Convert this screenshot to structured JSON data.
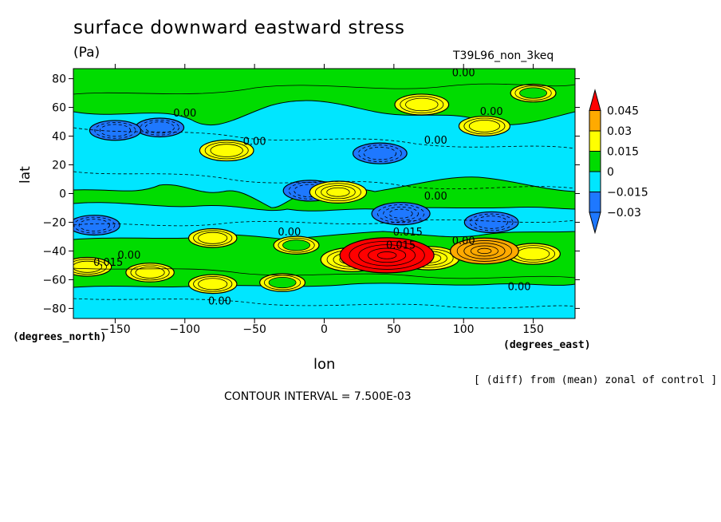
{
  "header": {
    "title": "surface downward eastward stress",
    "units": "(Pa)",
    "run_name": "T39L96_non_3keq"
  },
  "footer": {
    "contour_interval": "CONTOUR INTERVAL = 7.500E-03",
    "note": "[ (diff) from (mean) zonal of control ]"
  },
  "chart_data": {
    "type": "heatmap",
    "title": "surface downward eastward stress",
    "units": "(Pa)",
    "xlabel": "lon",
    "ylabel": "lat",
    "x_unit_label": "(degrees_east)",
    "y_unit_label": "(degrees_north)",
    "xlim": [
      -180,
      180
    ],
    "ylim": [
      -87,
      87
    ],
    "x_ticks": [
      -150,
      -100,
      -50,
      0,
      50,
      100,
      150
    ],
    "y_ticks": [
      80,
      60,
      40,
      20,
      0,
      -20,
      -40,
      -60,
      -80
    ],
    "grid": false,
    "contour_interval": 0.0075,
    "colorbar": {
      "position": "right",
      "levels": [
        -0.03,
        -0.015,
        0,
        0.015,
        0.03,
        0.045
      ],
      "level_labels": [
        "−0.03",
        "−0.015",
        "0",
        "0.015",
        "0.03",
        "0.045"
      ],
      "colors": [
        "#1e78ff",
        "#00e6ff",
        "#00dc00",
        "#ffff00",
        "#ffaa00",
        "#ff0000"
      ],
      "extend": "both"
    },
    "background_band": {
      "value": 0,
      "color": "#00dc00"
    },
    "anomalies": [
      {
        "lon": -70,
        "lat": 30,
        "value": 0.022
      },
      {
        "lon": 70,
        "lat": 62,
        "value": 0.022
      },
      {
        "lon": 115,
        "lat": 47,
        "value": 0.02
      },
      {
        "lon": 150,
        "lat": 70,
        "value": 0.016
      },
      {
        "lon": -150,
        "lat": 44,
        "value": -0.02
      },
      {
        "lon": -118,
        "lat": 46,
        "value": -0.018
      },
      {
        "lon": 40,
        "lat": 28,
        "value": -0.022
      },
      {
        "lon": -10,
        "lat": 2,
        "value": -0.022
      },
      {
        "lon": 10,
        "lat": 1,
        "value": 0.024
      },
      {
        "lon": 55,
        "lat": -14,
        "value": -0.025
      },
      {
        "lon": 120,
        "lat": -20,
        "value": -0.022
      },
      {
        "lon": -165,
        "lat": -22,
        "value": -0.02
      },
      {
        "lon": -80,
        "lat": -31,
        "value": 0.018
      },
      {
        "lon": -20,
        "lat": -36,
        "value": 0.016
      },
      {
        "lon": 45,
        "lat": -43,
        "value": 0.05
      },
      {
        "lon": 20,
        "lat": -46,
        "value": 0.028
      },
      {
        "lon": 75,
        "lat": -45,
        "value": 0.027
      },
      {
        "lon": 115,
        "lat": -40,
        "value": 0.032
      },
      {
        "lon": 150,
        "lat": -42,
        "value": 0.022
      },
      {
        "lon": -170,
        "lat": -51,
        "value": 0.018
      },
      {
        "lon": -125,
        "lat": -55,
        "value": 0.018
      },
      {
        "lon": -80,
        "lat": -63,
        "value": 0.018
      },
      {
        "lon": -30,
        "lat": -62,
        "value": 0.016
      }
    ],
    "contour_labels": [
      {
        "text": "0.00",
        "lon": 100,
        "lat": 84
      },
      {
        "text": "0.00",
        "lon": -100,
        "lat": 56
      },
      {
        "text": "0.00",
        "lon": 120,
        "lat": 57
      },
      {
        "text": "0.00",
        "lon": -50,
        "lat": 36
      },
      {
        "text": "0.00",
        "lon": 80,
        "lat": 37
      },
      {
        "text": "0.00",
        "lon": 80,
        "lat": -2
      },
      {
        "text": "0.00",
        "lon": -25,
        "lat": -27
      },
      {
        "text": "0.00",
        "lon": 100,
        "lat": -33
      },
      {
        "text": "0.00",
        "lon": -140,
        "lat": -43
      },
      {
        "text": "0.015",
        "lon": -155,
        "lat": -48
      },
      {
        "text": "0.015",
        "lon": 60,
        "lat": -27
      },
      {
        "text": "0.015",
        "lon": 55,
        "lat": -36
      },
      {
        "text": "0.00",
        "lon": 140,
        "lat": -65
      },
      {
        "text": "0.00",
        "lon": -75,
        "lat": -75
      }
    ]
  }
}
